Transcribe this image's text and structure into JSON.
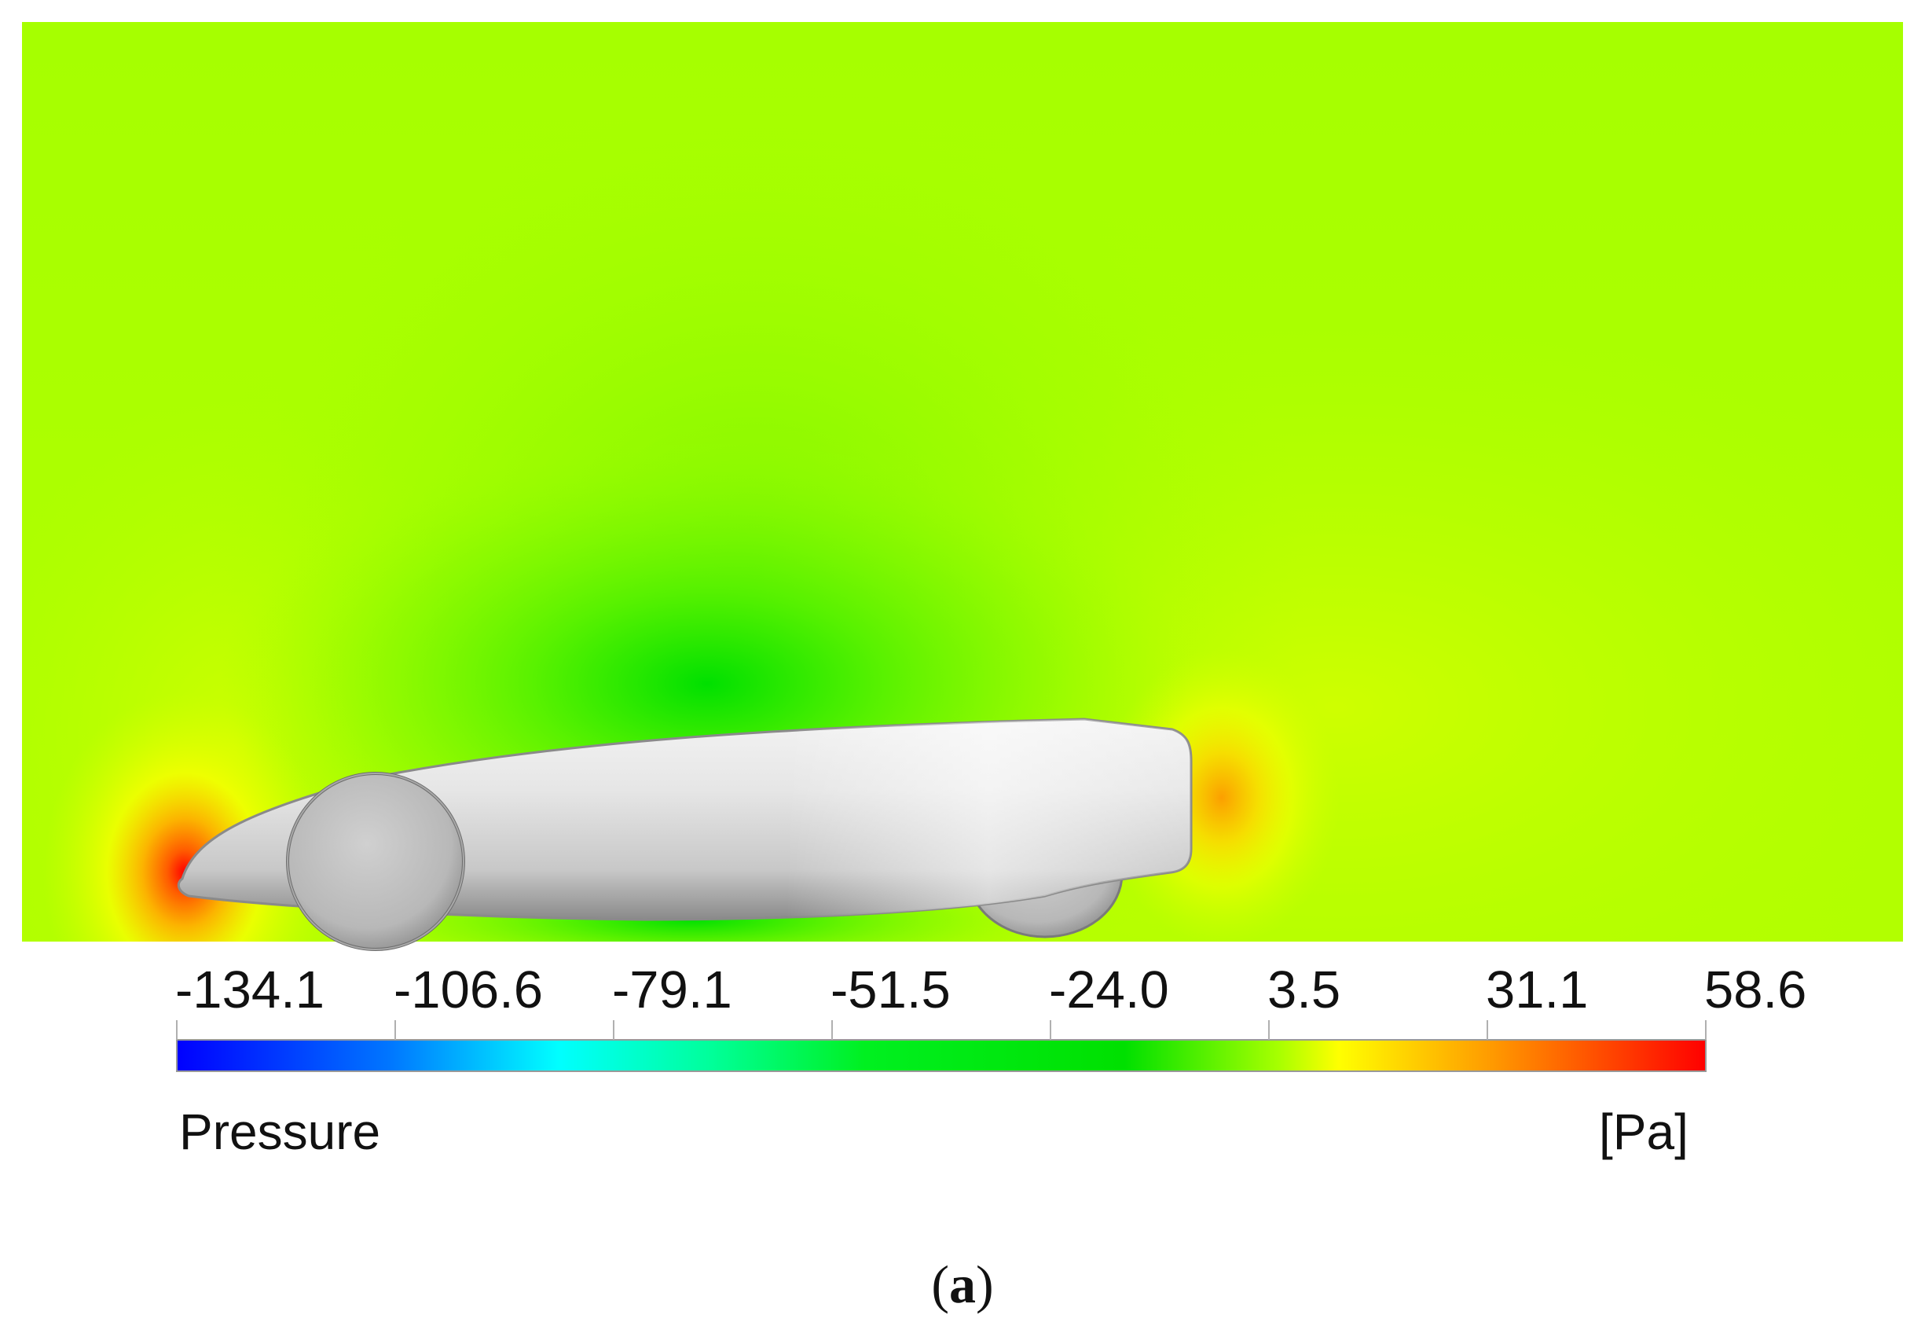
{
  "legend": {
    "title": "Pressure",
    "unit": "[Pa]",
    "ticks": [
      "-134.1",
      "-106.6",
      "-79.1",
      "-51.5",
      "-24.0",
      "3.5",
      "31.1",
      "58.6"
    ],
    "colors": [
      "#0000ff",
      "#00b4ff",
      "#00ffff",
      "#00ff88",
      "#00e600",
      "#00e000",
      "#a6ff00",
      "#ffff00",
      "#ff9a00",
      "#ff0000"
    ]
  },
  "field": {
    "background": "#a8ff00",
    "high_pressure": "#ff2a00",
    "low_pressure": "#22e000",
    "vehicle_body": "#d8d8d8"
  },
  "caption": {
    "open": "(",
    "letter": "a",
    "close": ")"
  }
}
